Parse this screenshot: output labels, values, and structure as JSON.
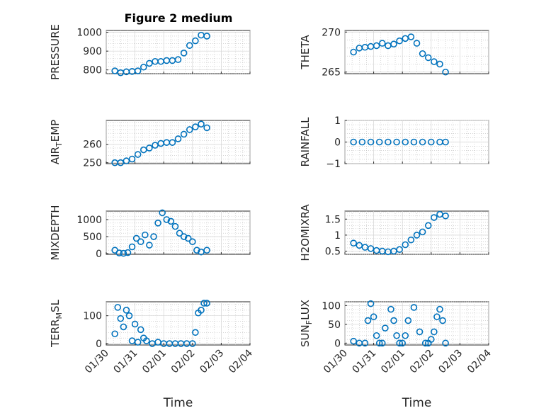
{
  "title": "Figure 2 medium",
  "marker_color": "#0072BD",
  "x_axis": {
    "label": "Time",
    "ticks": [
      "01/30",
      "01/31",
      "02/01",
      "02/02",
      "02/03",
      "02/04"
    ],
    "range_days": [
      0,
      5
    ]
  },
  "chart_data": [
    {
      "type": "scatter",
      "ylabel": "PRESSURE",
      "ylim": [
        780,
        1010
      ],
      "yticks": [
        800,
        900,
        1000
      ],
      "grid": true,
      "x": [
        0.3,
        0.5,
        0.7,
        0.9,
        1.1,
        1.3,
        1.5,
        1.7,
        1.9,
        2.1,
        2.3,
        2.5,
        2.7,
        2.9,
        3.1,
        3.3,
        3.5
      ],
      "y": [
        795,
        785,
        790,
        792,
        795,
        815,
        835,
        845,
        845,
        850,
        850,
        855,
        890,
        930,
        955,
        985,
        980
      ]
    },
    {
      "type": "scatter",
      "ylabel": "THETA",
      "ylim": [
        264.8,
        270.2
      ],
      "yticks": [
        265,
        270
      ],
      "grid": true,
      "x": [
        0.3,
        0.5,
        0.7,
        0.9,
        1.1,
        1.3,
        1.5,
        1.7,
        1.9,
        2.1,
        2.3,
        2.5,
        2.7,
        2.9,
        3.1,
        3.3,
        3.5
      ],
      "y": [
        267.5,
        268.0,
        268.1,
        268.2,
        268.3,
        268.6,
        268.3,
        268.5,
        268.9,
        269.2,
        269.4,
        268.6,
        267.3,
        266.8,
        266.3,
        266.0,
        265.0
      ]
    },
    {
      "type": "scatter",
      "ylabel": "AIR_TEMP",
      "ylim": [
        249.5,
        273
      ],
      "yticks": [
        250,
        260
      ],
      "grid": true,
      "x": [
        0.3,
        0.5,
        0.7,
        0.9,
        1.1,
        1.3,
        1.5,
        1.7,
        1.9,
        2.1,
        2.3,
        2.5,
        2.7,
        2.9,
        3.1,
        3.3,
        3.5
      ],
      "y": [
        250,
        250,
        251,
        252,
        254.5,
        257,
        258,
        259.5,
        260.5,
        261,
        261,
        263,
        265.5,
        268,
        269.5,
        271,
        269
      ]
    },
    {
      "type": "scatter",
      "ylabel": "RAINFALL",
      "ylim": [
        -1,
        1
      ],
      "yticks": [
        -1,
        0,
        1
      ],
      "grid": true,
      "x": [
        0.3,
        0.6,
        0.9,
        1.2,
        1.5,
        1.8,
        2.1,
        2.4,
        2.7,
        3.0,
        3.3,
        3.5
      ],
      "y": [
        0,
        0,
        0,
        0,
        0,
        0,
        0,
        0,
        0,
        0,
        0,
        0
      ]
    },
    {
      "type": "scatter",
      "ylabel": "MIXDEPTH",
      "ylim": [
        -20,
        1250
      ],
      "yticks": [
        0,
        500,
        1000
      ],
      "grid": true,
      "x": [
        0.3,
        0.45,
        0.6,
        0.75,
        0.9,
        1.05,
        1.2,
        1.35,
        1.5,
        1.65,
        1.8,
        1.95,
        2.1,
        2.25,
        2.4,
        2.55,
        2.7,
        2.85,
        3.0,
        3.15,
        3.3,
        3.5
      ],
      "y": [
        100,
        20,
        10,
        30,
        200,
        450,
        350,
        550,
        250,
        500,
        900,
        1200,
        1000,
        950,
        800,
        600,
        500,
        450,
        350,
        100,
        50,
        100
      ]
    },
    {
      "type": "scatter",
      "ylabel": "H2OMIXRA",
      "ylim": [
        0.4,
        1.75
      ],
      "yticks": [
        0.5,
        1,
        1.5
      ],
      "grid": true,
      "x": [
        0.3,
        0.5,
        0.7,
        0.9,
        1.1,
        1.3,
        1.5,
        1.7,
        1.9,
        2.1,
        2.3,
        2.5,
        2.7,
        2.9,
        3.1,
        3.3,
        3.5
      ],
      "y": [
        0.75,
        0.68,
        0.62,
        0.58,
        0.52,
        0.5,
        0.48,
        0.5,
        0.55,
        0.7,
        0.85,
        1.0,
        1.1,
        1.3,
        1.55,
        1.65,
        1.6
      ]
    },
    {
      "type": "scatter",
      "ylabel": "TERR_MSL",
      "ylim": [
        -5,
        150
      ],
      "yticks": [
        0,
        100
      ],
      "grid": true,
      "x": [
        0.3,
        0.4,
        0.5,
        0.6,
        0.7,
        0.8,
        0.9,
        1.0,
        1.1,
        1.2,
        1.3,
        1.4,
        1.6,
        1.8,
        2.0,
        2.2,
        2.4,
        2.6,
        2.8,
        3.0,
        3.1,
        3.2,
        3.3,
        3.4,
        3.5
      ],
      "y": [
        35,
        130,
        90,
        60,
        120,
        100,
        10,
        70,
        5,
        50,
        20,
        10,
        0,
        5,
        0,
        0,
        0,
        0,
        0,
        0,
        40,
        110,
        120,
        145,
        145
      ]
    },
    {
      "type": "scatter",
      "ylabel": "SUN_FLUX",
      "ylim": [
        -5,
        110
      ],
      "yticks": [
        0,
        50,
        100
      ],
      "grid": true,
      "x": [
        0.3,
        0.5,
        0.7,
        0.8,
        0.9,
        1.0,
        1.1,
        1.2,
        1.3,
        1.4,
        1.6,
        1.7,
        1.8,
        1.9,
        2.0,
        2.1,
        2.2,
        2.4,
        2.6,
        2.8,
        2.9,
        3.0,
        3.1,
        3.2,
        3.3,
        3.4,
        3.5
      ],
      "y": [
        5,
        0,
        0,
        60,
        105,
        70,
        20,
        0,
        0,
        40,
        90,
        60,
        20,
        0,
        0,
        20,
        60,
        95,
        30,
        0,
        0,
        10,
        30,
        70,
        90,
        60,
        0
      ]
    }
  ]
}
